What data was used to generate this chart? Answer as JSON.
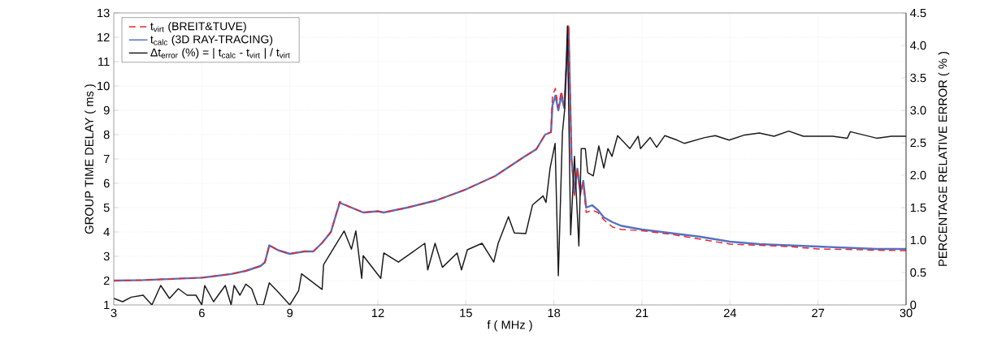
{
  "chart_data": {
    "type": "line",
    "xlabel": "f ( MHz )",
    "ylabel": "GROUP TIME DELAY ( ms )",
    "y2label": "PERCENTAGE RELATIVE ERROR ( % )",
    "xlim": [
      3,
      30
    ],
    "xticks": [
      3,
      6,
      9,
      12,
      15,
      18,
      21,
      24,
      27,
      30
    ],
    "ylim": [
      1,
      13
    ],
    "yticks": [
      1,
      2,
      3,
      4,
      5,
      6,
      7,
      8,
      9,
      10,
      11,
      12,
      13
    ],
    "y2lim": [
      0,
      4.5
    ],
    "y2ticks": [
      0,
      {
        "value": 0.5,
        "label": "0.5"
      },
      {
        "value": 1,
        "label": "1.0"
      },
      {
        "value": 1.5,
        "label": "1.5"
      },
      {
        "value": 2,
        "label": "2.0"
      },
      {
        "value": 2.5,
        "label": "2.5"
      },
      {
        "value": 3,
        "label": "3.0"
      },
      {
        "value": 3.5,
        "label": "3.5"
      },
      {
        "value": 4,
        "label": "4.0"
      },
      {
        "value": 4.5,
        "label": "4.5"
      }
    ],
    "grid": true,
    "legend": "top left",
    "x": [
      3,
      4,
      5,
      6,
      7,
      7.5,
      8,
      8.15,
      8.3,
      8.6,
      9,
      9.5,
      9.8,
      10.1,
      10.4,
      10.7,
      11,
      11.5,
      12,
      12.2,
      13,
      14,
      15,
      16,
      16.5,
      17,
      17.4,
      17.7,
      17.9,
      17.95,
      18.05,
      18.15,
      18.25,
      18.35,
      18.5,
      18.6,
      18.7,
      18.8,
      18.9,
      19.0,
      19.1,
      19.3,
      19.5,
      19.7,
      20,
      20.3,
      21,
      22,
      23,
      24,
      25,
      26,
      27,
      28,
      29,
      30
    ],
    "series": [
      {
        "name": "t$_{virt}$ (BREIT&TUVE)",
        "color": "#e8262b",
        "line_style": "dashed",
        "values": [
          2.0,
          2.02,
          2.07,
          2.12,
          2.27,
          2.4,
          2.6,
          2.75,
          3.45,
          3.25,
          3.1,
          3.2,
          3.2,
          3.55,
          4.0,
          5.25,
          5.05,
          4.8,
          4.85,
          4.8,
          5.0,
          5.3,
          5.75,
          6.3,
          6.7,
          7.1,
          7.4,
          8.0,
          8.1,
          9.6,
          9.9,
          9.1,
          9.8,
          9.2,
          12.5,
          7.0,
          5.5,
          6.6,
          5.5,
          6.0,
          4.8,
          4.9,
          4.8,
          4.5,
          4.2,
          4.1,
          4.05,
          3.9,
          3.7,
          3.5,
          3.45,
          3.4,
          3.3,
          3.28,
          3.25,
          3.23
        ]
      },
      {
        "name": "t$_{calc}$ (3D RAY-TRACING)",
        "color": "#5472c4",
        "line_style": "solid",
        "values": [
          2.0,
          2.02,
          2.07,
          2.12,
          2.27,
          2.4,
          2.6,
          2.75,
          3.45,
          3.25,
          3.1,
          3.2,
          3.2,
          3.55,
          4.0,
          5.2,
          5.05,
          4.8,
          4.85,
          4.8,
          5.0,
          5.3,
          5.75,
          6.3,
          6.7,
          7.1,
          7.4,
          8.0,
          8.1,
          9.2,
          9.6,
          9.0,
          9.6,
          9.1,
          12.4,
          7.0,
          5.6,
          6.6,
          5.6,
          6.1,
          5.0,
          5.1,
          4.9,
          4.6,
          4.4,
          4.25,
          4.1,
          3.95,
          3.8,
          3.6,
          3.5,
          3.45,
          3.4,
          3.35,
          3.3,
          3.3
        ]
      },
      {
        "name": "Δt$_{error}$ (%) = | t$_{calc}$ - t$_{virt}$ | / t$_{virt}$",
        "color": "#1a1a1a",
        "line_style": "solid",
        "axis": "y2",
        "x": [
          3,
          3.3,
          3.6,
          4,
          4.3,
          4.6,
          4.9,
          5.2,
          5.5,
          5.8,
          6,
          6.1,
          6.4,
          6.8,
          7,
          7.1,
          7.3,
          7.5,
          7.7,
          7.9,
          8.1,
          8.3,
          8.6,
          8.9,
          9,
          9.3,
          9.4,
          10.1,
          10.15,
          10.85,
          11.1,
          11.25,
          11.45,
          11.5,
          12.1,
          12.2,
          12.7,
          13.2,
          13.6,
          13.7,
          13.95,
          14.2,
          14.7,
          14.85,
          15.05,
          15.55,
          15.95,
          16.1,
          16.45,
          16.65,
          17.04,
          17.27,
          17.63,
          17.73,
          17.87,
          18.04,
          18.15,
          18.29,
          18.37,
          18.46,
          18.57,
          18.7,
          18.85,
          18.93,
          19.07,
          19.15,
          19.34,
          19.53,
          19.7,
          19.84,
          19.98,
          20.17,
          20.59,
          20.87,
          20.95,
          21.28,
          21.5,
          21.78,
          22.2,
          22.45,
          23.14,
          23.5,
          23.97,
          24.5,
          25,
          25.5,
          26,
          26.5,
          27,
          27.5,
          28,
          28.1,
          29,
          29.5,
          30
        ],
        "values": [
          0.1,
          0.05,
          0.12,
          0.15,
          0.0,
          0.3,
          0.1,
          0.25,
          0.15,
          0.15,
          0.0,
          0.3,
          0.05,
          0.3,
          0.0,
          0.3,
          0.15,
          0.32,
          0.25,
          0.0,
          0.0,
          0.34,
          0.2,
          0.05,
          0.0,
          0.22,
          0.48,
          0.24,
          0.62,
          1.14,
          0.86,
          1.14,
          0.41,
          0.76,
          0.41,
          0.8,
          0.66,
          0.82,
          0.95,
          0.54,
          0.95,
          0.58,
          0.8,
          0.54,
          0.85,
          0.95,
          0.66,
          0.95,
          1.36,
          1.11,
          1.1,
          1.54,
          1.68,
          1.58,
          2.11,
          2.49,
          0.45,
          2.66,
          3.03,
          4.3,
          1.08,
          2.29,
          0.91,
          2.41,
          2.41,
          2.04,
          1.99,
          2.45,
          2.11,
          2.41,
          2.29,
          2.61,
          2.41,
          2.6,
          2.41,
          2.58,
          2.43,
          2.61,
          2.54,
          2.49,
          2.58,
          2.61,
          2.54,
          2.62,
          2.65,
          2.6,
          2.68,
          2.6,
          2.6,
          2.6,
          2.57,
          2.67,
          2.57,
          2.6,
          2.6
        ]
      }
    ]
  }
}
